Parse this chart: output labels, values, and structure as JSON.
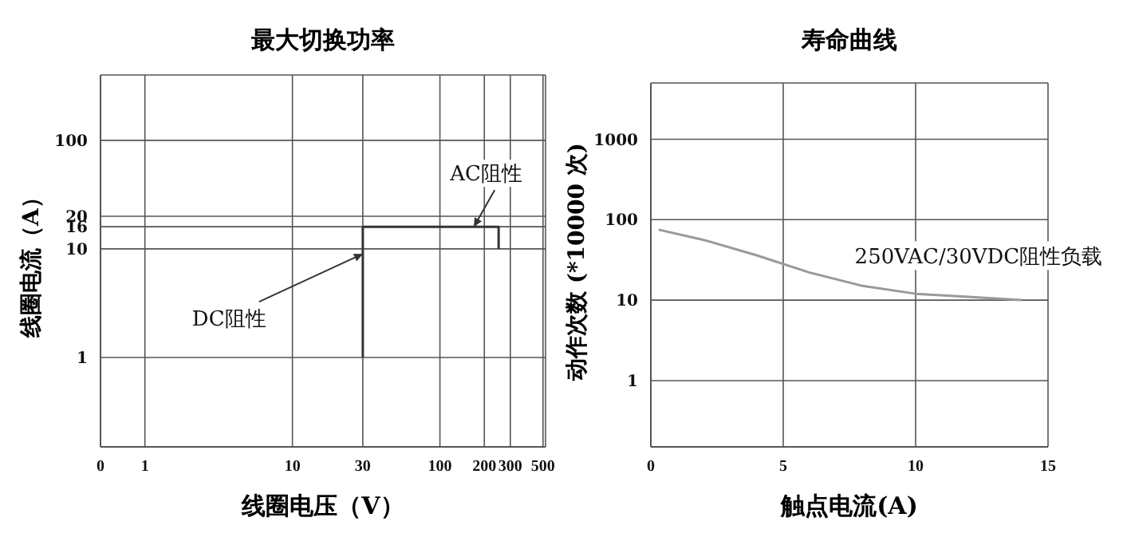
{
  "chart_data": [
    {
      "type": "line",
      "title": "最大切换功率",
      "xlabel": "线圈电压（V）",
      "ylabel": "线圈电流（A）",
      "xlim": [
        0.5,
        520
      ],
      "ylim": [
        0.15,
        400
      ],
      "xticks": [
        {
          "value": 0.5,
          "label": "0"
        },
        1,
        10,
        30,
        100,
        200,
        300,
        500
      ],
      "yticks": [
        1,
        10,
        16,
        20,
        100
      ],
      "log": "xy",
      "grid": true,
      "marker": "none",
      "line_style": "solid",
      "series": [
        {
          "color": "#333333",
          "x": [
            30,
            30
          ],
          "values": [
            1,
            16
          ]
        },
        {
          "color": "#333333",
          "x": [
            30,
            250,
            250
          ],
          "values": [
            16,
            16,
            10
          ]
        }
      ],
      "annotations": [
        {
          "text": "AC阻性",
          "x": 170,
          "y": 16
        },
        {
          "text": "DC阻性",
          "x": 30,
          "y": 9
        }
      ]
    },
    {
      "type": "line",
      "title": "寿命曲线",
      "xlabel": "触点电流(A)",
      "ylabel": "动作次数 (*10000 次)",
      "xlim": [
        0,
        15
      ],
      "ylim": [
        0.15,
        5000
      ],
      "xticks": [
        0,
        5,
        10,
        15
      ],
      "yticks": [
        1,
        10,
        100,
        1000
      ],
      "log": "y",
      "grid": true,
      "marker": "none",
      "line_style": "solid",
      "series": [
        {
          "name": "250VAC/30VDC阻性负载",
          "color": "#999999",
          "x": [
            0.3,
            2,
            4,
            6,
            8,
            10,
            12,
            14
          ],
          "values": [
            75,
            56,
            36,
            22,
            15,
            12,
            11,
            10
          ]
        }
      ]
    }
  ]
}
